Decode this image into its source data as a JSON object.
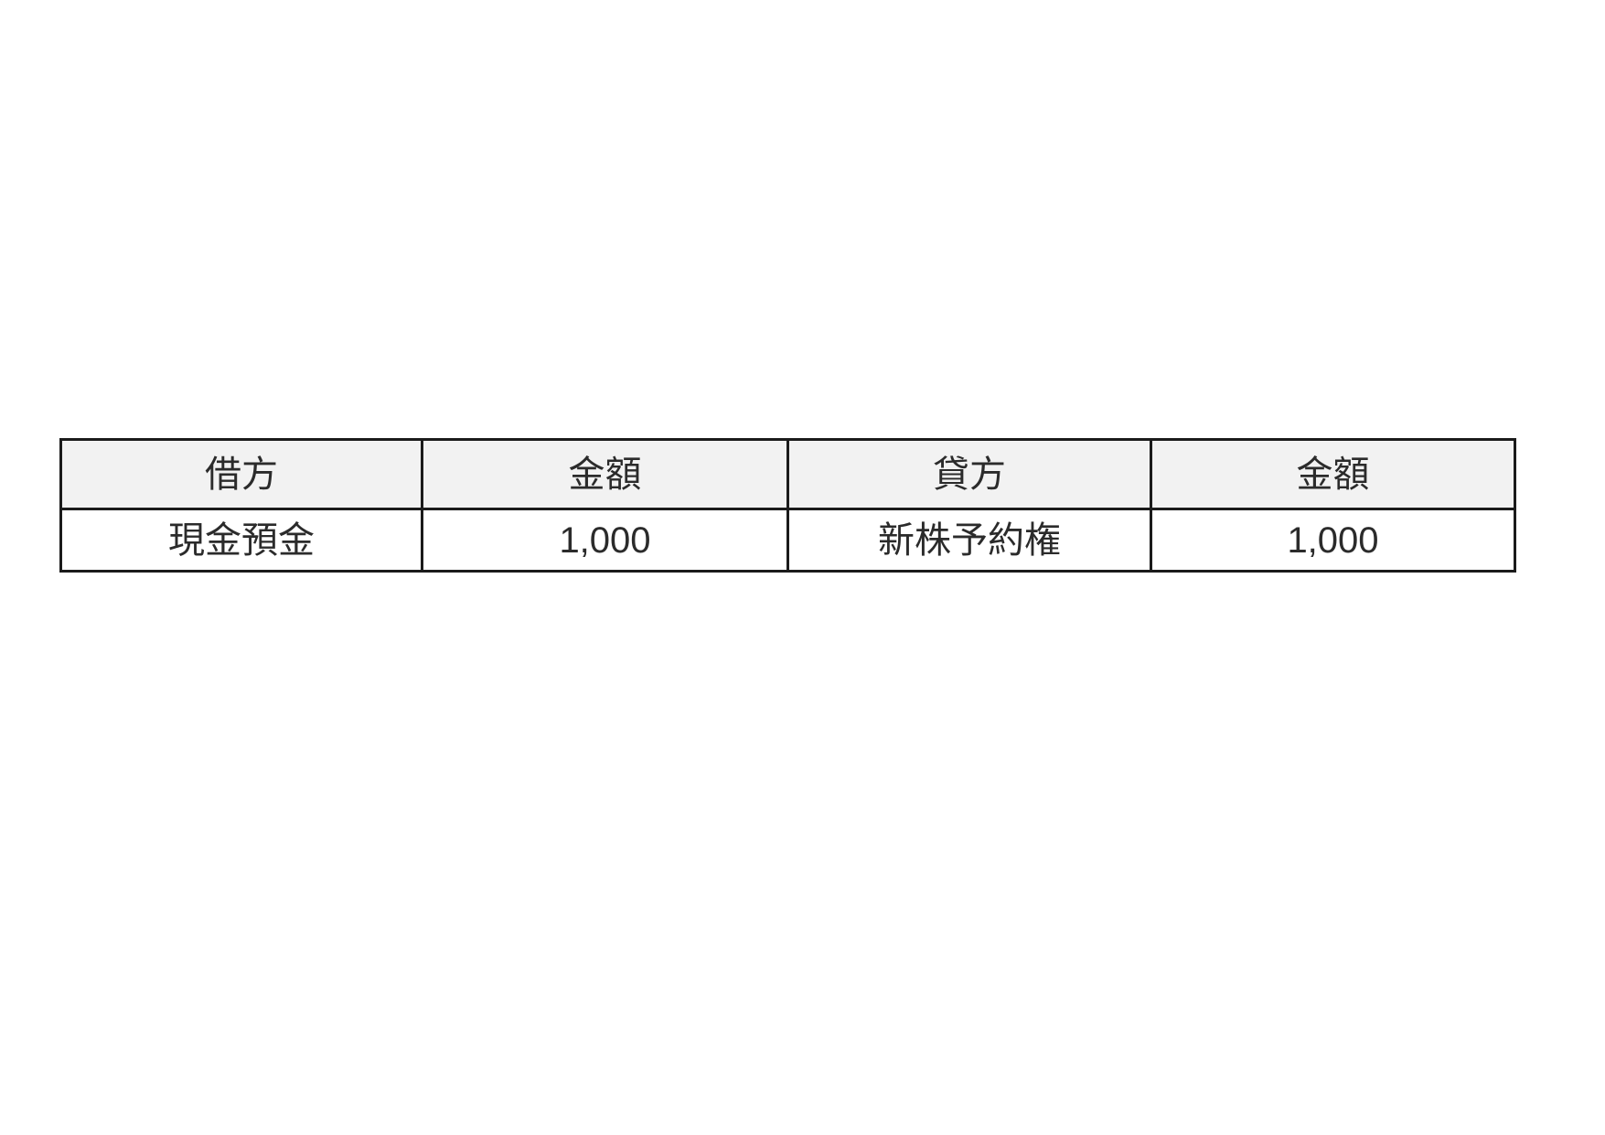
{
  "colors": {
    "page_bg": "#ffffff",
    "header_bg": "#f2f2f2",
    "border": "#1b1b1b",
    "text": "#2b2b2b"
  },
  "table": {
    "columns": [
      {
        "key": "debit_account",
        "label": "借方"
      },
      {
        "key": "debit_amount",
        "label": "金額"
      },
      {
        "key": "credit_account",
        "label": "貸方"
      },
      {
        "key": "credit_amount",
        "label": "金額"
      }
    ],
    "rows": [
      {
        "debit_account": "現金預金",
        "debit_amount": "1,000",
        "credit_account": "新株予約権",
        "credit_amount": "1,000"
      }
    ]
  }
}
